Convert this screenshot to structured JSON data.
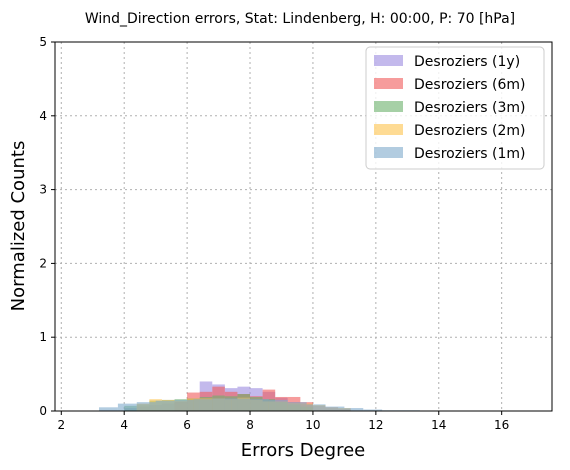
{
  "chart_data": {
    "type": "bar",
    "title": "Wind_Direction errors, Stat: Lindenberg, H: 00:00, P: 70 [hPa]",
    "xlabel": "Errors Degree",
    "ylabel": "Normalized Counts",
    "xlim": [
      1.8,
      17.6
    ],
    "ylim": [
      0,
      5
    ],
    "xticks": [
      2,
      4,
      6,
      8,
      10,
      12,
      14,
      16
    ],
    "yticks": [
      0,
      1,
      2,
      3,
      4,
      5
    ],
    "grid": true,
    "legend_position": "top-right",
    "series": [
      {
        "name": "Desroziers (1y)",
        "color": "#9b8be0",
        "opacity": 0.6,
        "bin_width": 0.4,
        "bins": [
          {
            "x": 4.0,
            "y": 0.04
          },
          {
            "x": 4.4,
            "y": 0.06
          },
          {
            "x": 4.8,
            "y": 0.08
          },
          {
            "x": 5.2,
            "y": 0.1
          },
          {
            "x": 5.6,
            "y": 0.13
          },
          {
            "x": 6.0,
            "y": 0.17
          },
          {
            "x": 6.4,
            "y": 0.4
          },
          {
            "x": 6.8,
            "y": 0.36
          },
          {
            "x": 7.2,
            "y": 0.31
          },
          {
            "x": 7.6,
            "y": 0.33
          },
          {
            "x": 8.0,
            "y": 0.31
          },
          {
            "x": 8.4,
            "y": 0.26
          },
          {
            "x": 8.8,
            "y": 0.18
          },
          {
            "x": 9.2,
            "y": 0.12
          },
          {
            "x": 9.6,
            "y": 0.09
          },
          {
            "x": 10.0,
            "y": 0.07
          },
          {
            "x": 10.4,
            "y": 0.05
          },
          {
            "x": 10.8,
            "y": 0.03
          }
        ]
      },
      {
        "name": "Desroziers (6m)",
        "color": "#f05a5a",
        "opacity": 0.6,
        "bin_width": 0.4,
        "bins": [
          {
            "x": 5.6,
            "y": 0.12
          },
          {
            "x": 6.0,
            "y": 0.25
          },
          {
            "x": 6.4,
            "y": 0.26
          },
          {
            "x": 6.8,
            "y": 0.33
          },
          {
            "x": 7.2,
            "y": 0.26
          },
          {
            "x": 7.6,
            "y": 0.23
          },
          {
            "x": 8.0,
            "y": 0.2
          },
          {
            "x": 8.4,
            "y": 0.29
          },
          {
            "x": 8.8,
            "y": 0.19
          },
          {
            "x": 9.2,
            "y": 0.19
          },
          {
            "x": 9.6,
            "y": 0.12
          }
        ]
      },
      {
        "name": "Desroziers (3m)",
        "color": "#6ab06a",
        "opacity": 0.6,
        "bin_width": 0.4,
        "bins": [
          {
            "x": 4.0,
            "y": 0.07
          },
          {
            "x": 4.4,
            "y": 0.09
          },
          {
            "x": 4.8,
            "y": 0.14
          },
          {
            "x": 5.2,
            "y": 0.15
          },
          {
            "x": 5.6,
            "y": 0.16
          },
          {
            "x": 6.0,
            "y": 0.17
          },
          {
            "x": 6.4,
            "y": 0.19
          },
          {
            "x": 6.8,
            "y": 0.21
          },
          {
            "x": 7.2,
            "y": 0.2
          },
          {
            "x": 7.6,
            "y": 0.23
          },
          {
            "x": 8.0,
            "y": 0.19
          },
          {
            "x": 8.4,
            "y": 0.16
          },
          {
            "x": 8.8,
            "y": 0.12
          },
          {
            "x": 9.2,
            "y": 0.09
          },
          {
            "x": 9.6,
            "y": 0.06
          }
        ]
      },
      {
        "name": "Desroziers (2m)",
        "color": "#fdc34d",
        "opacity": 0.6,
        "bin_width": 0.4,
        "bins": [
          {
            "x": 4.4,
            "y": 0.1
          },
          {
            "x": 4.8,
            "y": 0.16
          },
          {
            "x": 5.2,
            "y": 0.15
          },
          {
            "x": 5.6,
            "y": 0.14
          },
          {
            "x": 6.0,
            "y": 0.17
          },
          {
            "x": 6.4,
            "y": 0.17
          },
          {
            "x": 6.8,
            "y": 0.17
          },
          {
            "x": 7.2,
            "y": 0.16
          },
          {
            "x": 7.6,
            "y": 0.18
          },
          {
            "x": 8.0,
            "y": 0.15
          },
          {
            "x": 8.4,
            "y": 0.13
          },
          {
            "x": 8.8,
            "y": 0.13
          },
          {
            "x": 9.2,
            "y": 0.11
          },
          {
            "x": 9.6,
            "y": 0.1
          },
          {
            "x": 10.0,
            "y": 0.08
          },
          {
            "x": 10.4,
            "y": 0.05
          },
          {
            "x": 10.8,
            "y": 0.04
          }
        ]
      },
      {
        "name": "Desroziers (1m)",
        "color": "#7faacb",
        "opacity": 0.6,
        "bin_width": 0.6,
        "bins": [
          {
            "x": 3.2,
            "y": 0.05
          },
          {
            "x": 3.8,
            "y": 0.1
          },
          {
            "x": 4.4,
            "y": 0.12
          },
          {
            "x": 5.0,
            "y": 0.14
          },
          {
            "x": 5.6,
            "y": 0.15
          },
          {
            "x": 6.2,
            "y": 0.16
          },
          {
            "x": 6.8,
            "y": 0.17
          },
          {
            "x": 7.4,
            "y": 0.17
          },
          {
            "x": 8.0,
            "y": 0.16
          },
          {
            "x": 8.6,
            "y": 0.15
          },
          {
            "x": 9.2,
            "y": 0.12
          },
          {
            "x": 9.8,
            "y": 0.09
          },
          {
            "x": 10.4,
            "y": 0.06
          },
          {
            "x": 11.0,
            "y": 0.04
          },
          {
            "x": 11.6,
            "y": 0.02
          },
          {
            "x": 12.2,
            "y": 0.01
          },
          {
            "x": 12.8,
            "y": 0.01
          },
          {
            "x": 13.4,
            "y": 0.005
          }
        ]
      }
    ]
  }
}
